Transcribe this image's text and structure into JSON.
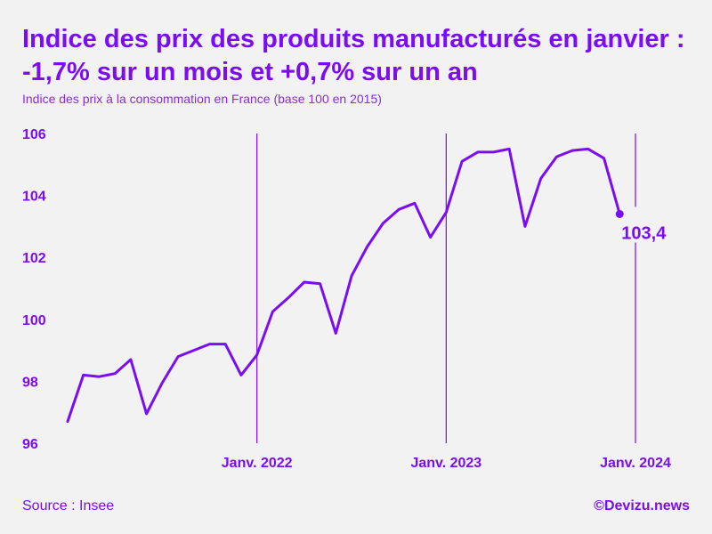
{
  "header": {
    "title_line1": "Indice des prix des produits manufacturés en janvier :",
    "title_line2": "-1,7% sur un mois et +0,7% sur un an",
    "subtitle": "Indice des prix à la consommation en France (base 100 en 2015)"
  },
  "footer": {
    "source": "Source : Insee",
    "credit": "©Devizu.news"
  },
  "colors": {
    "accent": "#7a0df2",
    "background": "#f2f2f2"
  },
  "chart_data": {
    "type": "line",
    "title": "Indice des prix des produits manufacturés en janvier : -1,7% sur un mois et +0,7% sur un an",
    "subtitle": "Indice des prix à la consommation en France (base 100 en 2015)",
    "xlabel": "",
    "ylabel": "",
    "x_start": "2021-01",
    "x_end": "2024-01",
    "ylim": [
      96,
      106
    ],
    "yticks": [
      96,
      98,
      100,
      102,
      104,
      106
    ],
    "xticks": [
      {
        "month": "2022-01",
        "label": "Janv. 2022"
      },
      {
        "month": "2023-01",
        "label": "Janv. 2023"
      },
      {
        "month": "2024-01",
        "label": "Janv. 2024"
      }
    ],
    "grid": "vertical lines at January ticks",
    "series": [
      {
        "name": "",
        "x": [
          "2021-01",
          "2021-02",
          "2021-03",
          "2021-04",
          "2021-05",
          "2021-06",
          "2021-07",
          "2021-08",
          "2021-09",
          "2021-10",
          "2021-11",
          "2021-12",
          "2022-01",
          "2022-02",
          "2022-03",
          "2022-04",
          "2022-05",
          "2022-06",
          "2022-07",
          "2022-08",
          "2022-09",
          "2022-10",
          "2022-11",
          "2022-12",
          "2023-01",
          "2023-02",
          "2023-03",
          "2023-04",
          "2023-05",
          "2023-06",
          "2023-07",
          "2023-08",
          "2023-09",
          "2023-10",
          "2023-11",
          "2023-12",
          "2024-01"
        ],
        "values": [
          96.7,
          98.2,
          98.15,
          98.25,
          98.7,
          96.95,
          97.95,
          98.8,
          99.0,
          99.2,
          99.2,
          98.2,
          98.85,
          100.25,
          100.7,
          101.2,
          101.15,
          99.55,
          101.4,
          102.35,
          103.1,
          103.55,
          103.75,
          102.65,
          103.45,
          105.1,
          105.4,
          105.4,
          105.5,
          103.0,
          104.55,
          105.25,
          105.45,
          105.5,
          105.2,
          103.4,
          null
        ]
      }
    ],
    "last_value": {
      "month": "2023-12",
      "value": 103.4,
      "label": "103,4"
    }
  }
}
